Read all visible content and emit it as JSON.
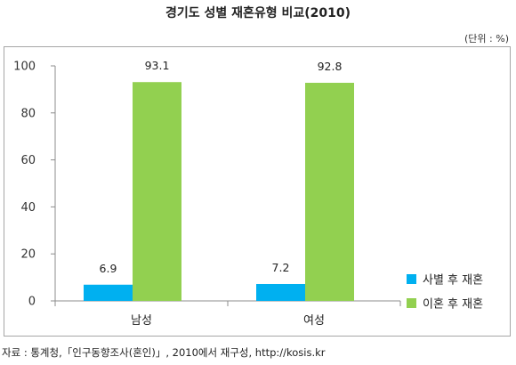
{
  "chart_data": {
    "type": "bar",
    "title": "경기도 성별 재혼유형 비교(2010)",
    "unit_label": "(단위 : %)",
    "categories": [
      "남성",
      "여성"
    ],
    "series": [
      {
        "name": "사별 후 재혼",
        "values": [
          6.9,
          7.2
        ],
        "color": "#00b0f0"
      },
      {
        "name": "이혼 후 재혼",
        "values": [
          93.1,
          92.8
        ],
        "color": "#92d050"
      }
    ],
    "ylim": [
      0,
      100
    ],
    "yticks": [
      0,
      20,
      40,
      60,
      80,
      100
    ],
    "grid": false,
    "legend_position": "bottom-right"
  },
  "source": "자료 : 통계청,「인구동향조사(혼인)」, 2010에서 재구성, http://kosis.kr"
}
